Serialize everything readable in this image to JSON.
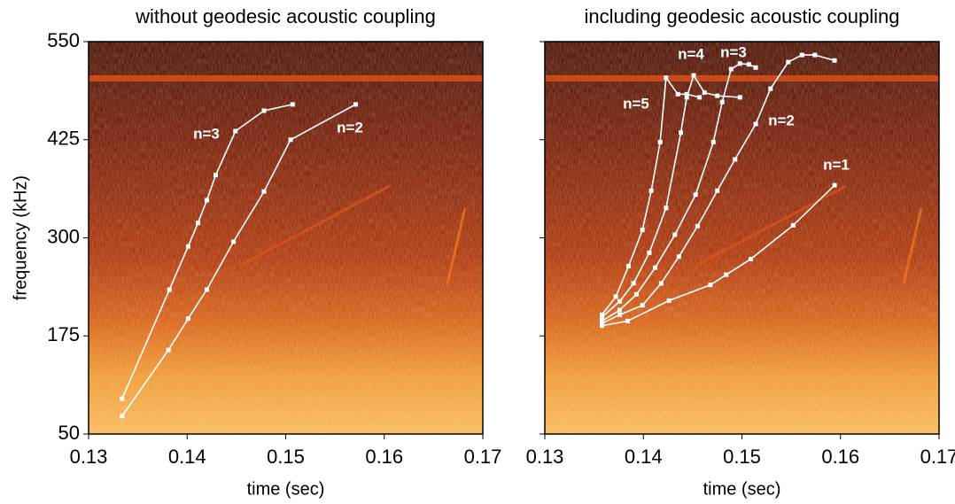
{
  "chart_data": [
    {
      "type": "line",
      "title": "without geodesic acoustic coupling",
      "xlabel": "time  (sec)",
      "ylabel": "frequency  (kHz)",
      "xlim": [
        0.13,
        0.17
      ],
      "xticks": [
        0.13,
        0.14,
        0.15,
        0.16,
        0.17
      ],
      "ylim": [
        50,
        550
      ],
      "yticks": [
        50,
        175,
        300,
        425,
        550
      ],
      "show_ytick_labels": true,
      "series": [
        {
          "name": "n=3",
          "color": "#ffffff",
          "x": [
            0.1334,
            0.1382,
            0.1401,
            0.1411,
            0.142,
            0.1429,
            0.1449,
            0.1478,
            0.1507
          ],
          "values": [
            95,
            234,
            289,
            319,
            348,
            380,
            436,
            462,
            470
          ]
        },
        {
          "name": "n=2",
          "color": "#ffffff",
          "x": [
            0.1334,
            0.1381,
            0.1401,
            0.142,
            0.1447,
            0.1478,
            0.1505,
            0.1571
          ],
          "values": [
            73,
            157,
            197,
            234,
            295,
            359,
            425,
            470
          ]
        }
      ]
    },
    {
      "type": "line",
      "title": "including geodesic acoustic coupling",
      "xlabel": "time  (sec)",
      "xlim": [
        0.13,
        0.17
      ],
      "xticks": [
        0.13,
        0.14,
        0.15,
        0.16,
        0.17
      ],
      "ylim": [
        50,
        550
      ],
      "yticks": [
        50,
        175,
        300,
        425,
        550
      ],
      "show_ytick_labels": false,
      "series": [
        {
          "name": "n=5",
          "color": "#ffffff",
          "x": [
            0.1358,
            0.1372,
            0.1385,
            0.1399,
            0.1408,
            0.1417,
            0.1423,
            0.1435,
            0.1444,
            0.1457
          ],
          "values": [
            202,
            225,
            264,
            310,
            360,
            422,
            504,
            483,
            483,
            479
          ]
        },
        {
          "name": "n=4",
          "color": "#ffffff",
          "x": [
            0.1358,
            0.1376,
            0.139,
            0.1406,
            0.1423,
            0.1438,
            0.1444,
            0.1451,
            0.1462,
            0.1475,
            0.1498
          ],
          "values": [
            199,
            219,
            242,
            281,
            338,
            434,
            479,
            507,
            485,
            481,
            479
          ]
        },
        {
          "name": "n=3",
          "color": "#ffffff",
          "x": [
            0.1358,
            0.1376,
            0.1393,
            0.1412,
            0.1432,
            0.1453,
            0.1471,
            0.148,
            0.1489,
            0.1498,
            0.1507,
            0.1514
          ],
          "values": [
            194,
            208,
            228,
            262,
            304,
            355,
            422,
            473,
            515,
            522,
            521,
            517
          ]
        },
        {
          "name": "n=2",
          "color": "#ffffff",
          "x": [
            0.1358,
            0.1376,
            0.1399,
            0.1418,
            0.1436,
            0.1455,
            0.1475,
            0.1493,
            0.1514,
            0.1529,
            0.1547,
            0.1561,
            0.1574,
            0.1594
          ],
          "values": [
            191,
            202,
            214,
            242,
            276,
            315,
            360,
            400,
            445,
            490,
            524,
            533,
            533,
            526
          ]
        },
        {
          "name": "n=1",
          "color": "#ffffff",
          "x": [
            0.1358,
            0.1384,
            0.1426,
            0.1468,
            0.1484,
            0.1509,
            0.1552,
            0.1594
          ],
          "values": [
            188,
            194,
            220,
            240,
            253,
            273,
            316,
            367
          ]
        }
      ]
    }
  ]
}
